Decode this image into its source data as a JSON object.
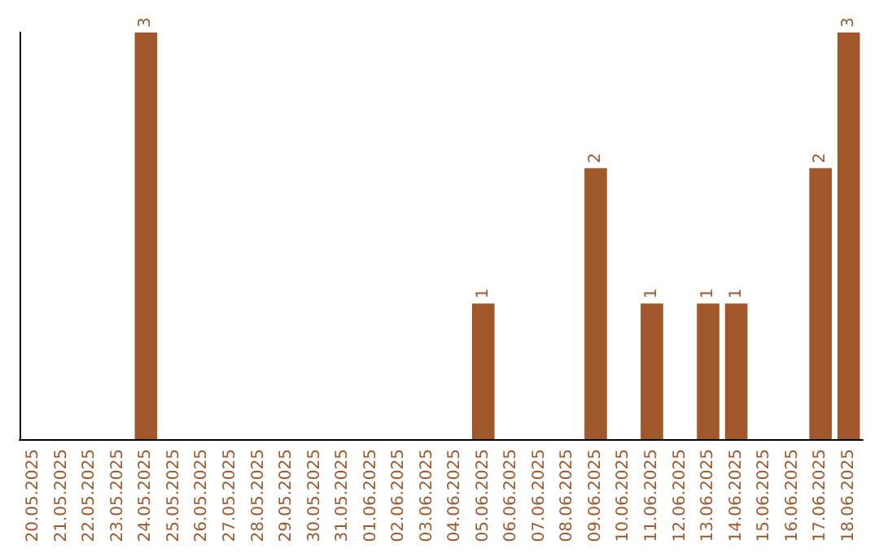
{
  "chart_data": {
    "type": "bar",
    "categories": [
      "20.05.2025",
      "21.05.2025",
      "22.05.2025",
      "23.05.2025",
      "24.05.2025",
      "25.05.2025",
      "26.05.2025",
      "27.05.2025",
      "28.05.2025",
      "29.05.2025",
      "30.05.2025",
      "31.05.2025",
      "01.06.2025",
      "02.06.2025",
      "03.06.2025",
      "04.06.2025",
      "05.06.2025",
      "06.06.2025",
      "07.06.2025",
      "08.06.2025",
      "09.06.2025",
      "10.06.2025",
      "11.06.2025",
      "12.06.2025",
      "13.06.2025",
      "14.06.2025",
      "15.06.2025",
      "16.06.2025",
      "17.06.2025",
      "18.06.2025"
    ],
    "values": [
      0,
      0,
      0,
      0,
      3,
      0,
      0,
      0,
      0,
      0,
      0,
      0,
      0,
      0,
      0,
      0,
      1,
      0,
      0,
      0,
      2,
      0,
      1,
      0,
      1,
      1,
      0,
      0,
      2,
      3
    ],
    "value_labels": [
      null,
      null,
      null,
      null,
      "3",
      null,
      null,
      null,
      null,
      null,
      null,
      null,
      null,
      null,
      null,
      null,
      "1",
      null,
      null,
      null,
      "2",
      null,
      "1",
      null,
      "1",
      "1",
      null,
      null,
      "2",
      "3"
    ],
    "color": "#a0582a",
    "relative": false,
    "grid": false,
    "tick_labels": "x"
  }
}
